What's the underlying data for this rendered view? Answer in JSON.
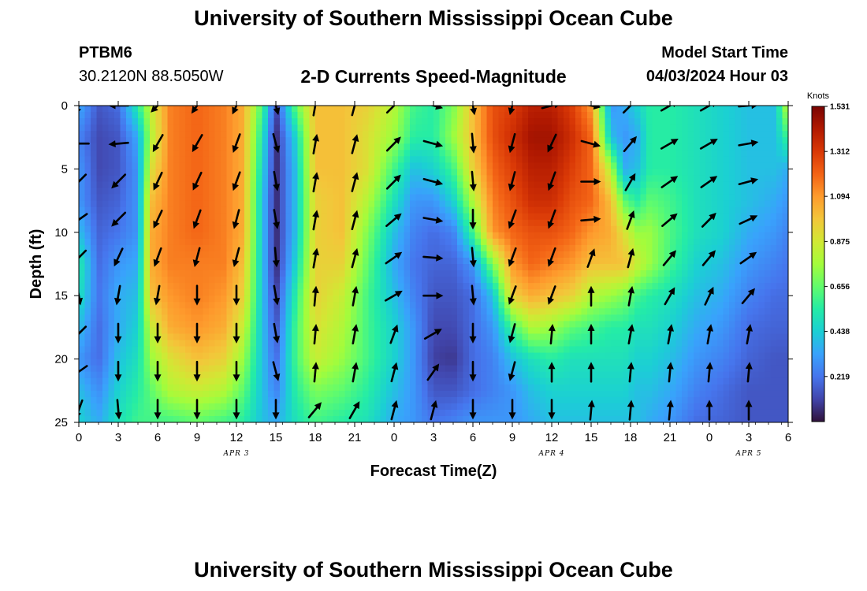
{
  "page": {
    "title": "University of Southern Mississippi Ocean Cube",
    "footer_title": "University of Southern Mississippi Ocean Cube",
    "station": "PTBM6",
    "coordinates": "30.2120N  88.5050W",
    "subtitle": "2-D Currents Speed-Magnitude",
    "model_start_label": "Model Start Time",
    "model_start_value": "04/03/2024 Hour 03"
  },
  "chart_data": {
    "type": "heatmap",
    "title": "2-D Currents Speed-Magnitude",
    "xlabel": "Forecast Time(Z)",
    "ylabel": "Depth (ft)",
    "x_hours": [
      0,
      54
    ],
    "x_tick_labels": [
      "0",
      "3",
      "6",
      "9",
      "12",
      "15",
      "18",
      "21",
      "0",
      "3",
      "6",
      "9",
      "12",
      "15",
      "18",
      "21",
      "0",
      "3",
      "6"
    ],
    "date_labels": [
      {
        "label": "APR 3",
        "hour": 12
      },
      {
        "label": "APR 4",
        "hour": 36
      },
      {
        "label": "APR 5",
        "hour": 51
      }
    ],
    "ylim": [
      0,
      25
    ],
    "y_ticks": [
      0,
      5,
      10,
      15,
      20,
      25
    ],
    "colorbar": {
      "unit": "Knots",
      "min": 0,
      "max": 1.531,
      "tick_labels": [
        "1.531",
        "1.312",
        "1.094",
        "0.875",
        "0.656",
        "0.438",
        "0.219"
      ],
      "tick_values": [
        1.531,
        1.312,
        1.094,
        0.875,
        0.656,
        0.438,
        0.219
      ]
    },
    "colors": {
      "scale": [
        "#30123b",
        "#4145ab",
        "#4675ed",
        "#39a2fc",
        "#1bcfd4",
        "#24eca6",
        "#61fc6c",
        "#a4fc3b",
        "#d1e834",
        "#f3c63a",
        "#fe9b2d",
        "#f36315",
        "#d93806",
        "#b11901",
        "#7a0402"
      ]
    },
    "speed_columns_hours": [
      0,
      1.5,
      3,
      4.5,
      5.5,
      7,
      9,
      11,
      12.5,
      14,
      15,
      16.5,
      18,
      20,
      22,
      24,
      25.5,
      27,
      28.5,
      30,
      31.5,
      33,
      34.5,
      36,
      37.5,
      39,
      40.5,
      41.5,
      42.5,
      43.5,
      45,
      47,
      49,
      51,
      53,
      54
    ],
    "speed_depths_ft": [
      0,
      2.5,
      5,
      7.5,
      10,
      12.5,
      15,
      17.5,
      20,
      22.5,
      25
    ],
    "speed_knots": [
      [
        0.35,
        0.25,
        0.3,
        0.3,
        0.4,
        0.55,
        0.5,
        0.4,
        0.3,
        0.4,
        0.45
      ],
      [
        0.15,
        0.12,
        0.12,
        0.15,
        0.18,
        0.2,
        0.22,
        0.2,
        0.2,
        0.28,
        0.35
      ],
      [
        0.2,
        0.15,
        0.15,
        0.18,
        0.22,
        0.3,
        0.35,
        0.35,
        0.4,
        0.45,
        0.5
      ],
      [
        0.55,
        0.35,
        0.3,
        0.3,
        0.3,
        0.35,
        0.4,
        0.45,
        0.5,
        0.55,
        0.6
      ],
      [
        0.85,
        0.8,
        0.9,
        1.0,
        1.05,
        1.05,
        1.0,
        0.85,
        0.75,
        0.65,
        0.6
      ],
      [
        1.15,
        1.15,
        1.15,
        1.15,
        1.15,
        1.15,
        1.1,
        1.05,
        0.9,
        0.8,
        0.6
      ],
      [
        1.2,
        1.2,
        1.2,
        1.2,
        1.2,
        1.15,
        1.15,
        1.1,
        1.0,
        0.85,
        0.65
      ],
      [
        1.15,
        1.15,
        1.15,
        1.15,
        1.15,
        1.15,
        1.1,
        1.05,
        0.95,
        0.8,
        0.6
      ],
      [
        1.05,
        1.05,
        1.05,
        1.05,
        1.05,
        1.0,
        0.95,
        0.85,
        0.75,
        0.65,
        0.55
      ],
      [
        0.6,
        0.5,
        0.45,
        0.4,
        0.4,
        0.4,
        0.4,
        0.4,
        0.4,
        0.4,
        0.4
      ],
      [
        0.1,
        0.05,
        0.05,
        0.05,
        0.05,
        0.05,
        0.1,
        0.15,
        0.2,
        0.25,
        0.35
      ],
      [
        0.65,
        0.45,
        0.4,
        0.4,
        0.4,
        0.45,
        0.55,
        0.6,
        0.6,
        0.55,
        0.5
      ],
      [
        1.0,
        1.0,
        1.0,
        0.95,
        0.95,
        0.95,
        0.95,
        0.9,
        0.85,
        0.7,
        0.6
      ],
      [
        1.0,
        1.0,
        1.0,
        1.0,
        1.0,
        0.95,
        0.85,
        0.8,
        0.75,
        0.65,
        0.55
      ],
      [
        0.95,
        0.9,
        0.9,
        0.8,
        0.7,
        0.65,
        0.6,
        0.6,
        0.6,
        0.55,
        0.5
      ],
      [
        0.8,
        0.75,
        0.6,
        0.5,
        0.4,
        0.35,
        0.4,
        0.45,
        0.45,
        0.4,
        0.35
      ],
      [
        0.6,
        0.55,
        0.4,
        0.3,
        0.25,
        0.22,
        0.25,
        0.3,
        0.3,
        0.3,
        0.3
      ],
      [
        0.55,
        0.55,
        0.45,
        0.3,
        0.2,
        0.18,
        0.15,
        0.12,
        0.1,
        0.15,
        0.22
      ],
      [
        0.7,
        0.75,
        0.6,
        0.45,
        0.25,
        0.18,
        0.15,
        0.12,
        0.08,
        0.15,
        0.25
      ],
      [
        1.0,
        1.0,
        0.95,
        0.8,
        0.6,
        0.3,
        0.2,
        0.2,
        0.2,
        0.2,
        0.3
      ],
      [
        1.25,
        1.25,
        1.2,
        1.15,
        1.1,
        0.7,
        0.4,
        0.3,
        0.25,
        0.25,
        0.3
      ],
      [
        1.3,
        1.35,
        1.3,
        1.25,
        1.2,
        1.1,
        0.95,
        0.6,
        0.4,
        0.3,
        0.3
      ],
      [
        1.4,
        1.45,
        1.4,
        1.35,
        1.25,
        1.2,
        1.05,
        0.8,
        0.5,
        0.4,
        0.35
      ],
      [
        1.4,
        1.45,
        1.4,
        1.35,
        1.25,
        1.15,
        1.0,
        0.75,
        0.55,
        0.45,
        0.4
      ],
      [
        1.3,
        1.35,
        1.3,
        1.25,
        1.2,
        1.1,
        0.95,
        0.65,
        0.5,
        0.45,
        0.4
      ],
      [
        1.1,
        1.2,
        1.2,
        1.2,
        1.1,
        1.0,
        0.8,
        0.6,
        0.5,
        0.45,
        0.4
      ],
      [
        0.3,
        0.4,
        0.8,
        1.0,
        1.05,
        1.0,
        0.75,
        0.55,
        0.5,
        0.45,
        0.4
      ],
      [
        0.35,
        0.3,
        0.35,
        0.65,
        0.9,
        1.0,
        0.7,
        0.55,
        0.5,
        0.45,
        0.4
      ],
      [
        0.45,
        0.35,
        0.4,
        0.55,
        0.75,
        0.85,
        0.6,
        0.5,
        0.45,
        0.4,
        0.4
      ],
      [
        0.55,
        0.55,
        0.55,
        0.65,
        0.75,
        0.75,
        0.55,
        0.5,
        0.45,
        0.4,
        0.35
      ],
      [
        0.55,
        0.55,
        0.55,
        0.6,
        0.62,
        0.6,
        0.5,
        0.45,
        0.4,
        0.35,
        0.3
      ],
      [
        0.5,
        0.5,
        0.5,
        0.5,
        0.5,
        0.45,
        0.4,
        0.35,
        0.3,
        0.25,
        0.2
      ],
      [
        0.45,
        0.45,
        0.45,
        0.45,
        0.45,
        0.4,
        0.35,
        0.3,
        0.25,
        0.2,
        0.18
      ],
      [
        0.4,
        0.4,
        0.4,
        0.4,
        0.35,
        0.3,
        0.25,
        0.2,
        0.18,
        0.15,
        0.15
      ],
      [
        0.4,
        0.4,
        0.4,
        0.35,
        0.3,
        0.25,
        0.2,
        0.18,
        0.15,
        0.15,
        0.15
      ],
      [
        0.85,
        0.6,
        0.35,
        0.3,
        0.25,
        0.22,
        0.2,
        0.18,
        0.15,
        0.15,
        0.15
      ]
    ],
    "vector_hours": [
      0,
      3,
      6,
      9,
      12,
      15,
      18,
      21,
      24,
      27,
      30,
      33,
      36,
      39,
      42,
      45,
      48,
      51
    ],
    "vector_depths_ft": [
      0,
      3,
      6,
      9,
      12,
      15,
      18,
      21,
      24
    ],
    "vector_direction_deg": [
      [
        200,
        270,
        225,
        235,
        225,
        170,
        225,
        235,
        200
      ],
      [
        270,
        265,
        225,
        225,
        205,
        190,
        180,
        180,
        175
      ],
      [
        225,
        210,
        205,
        205,
        200,
        190,
        180,
        180,
        180
      ],
      [
        215,
        210,
        205,
        200,
        195,
        180,
        180,
        180,
        180
      ],
      [
        205,
        200,
        200,
        195,
        195,
        180,
        180,
        180,
        180
      ],
      [
        165,
        165,
        170,
        170,
        175,
        170,
        170,
        165,
        180
      ],
      [
        10,
        10,
        10,
        10,
        10,
        5,
        5,
        5,
        40
      ],
      [
        15,
        15,
        15,
        15,
        15,
        10,
        10,
        10,
        30
      ],
      [
        45,
        45,
        45,
        50,
        55,
        60,
        20,
        15,
        15
      ],
      [
        105,
        105,
        105,
        100,
        95,
        90,
        60,
        35,
        15
      ],
      [
        170,
        175,
        175,
        180,
        175,
        175,
        180,
        180,
        180
      ],
      [
        195,
        195,
        195,
        200,
        200,
        200,
        195,
        195,
        180
      ],
      [
        75,
        205,
        200,
        200,
        200,
        200,
        5,
        0,
        180
      ],
      [
        100,
        105,
        90,
        85,
        20,
        0,
        0,
        0,
        5
      ],
      [
        45,
        40,
        30,
        20,
        15,
        10,
        10,
        5,
        5
      ],
      [
        60,
        60,
        55,
        50,
        40,
        30,
        10,
        5,
        5
      ],
      [
        60,
        60,
        55,
        45,
        40,
        25,
        10,
        5,
        0
      ],
      [
        85,
        80,
        75,
        65,
        55,
        40,
        10,
        5,
        0
      ]
    ]
  }
}
